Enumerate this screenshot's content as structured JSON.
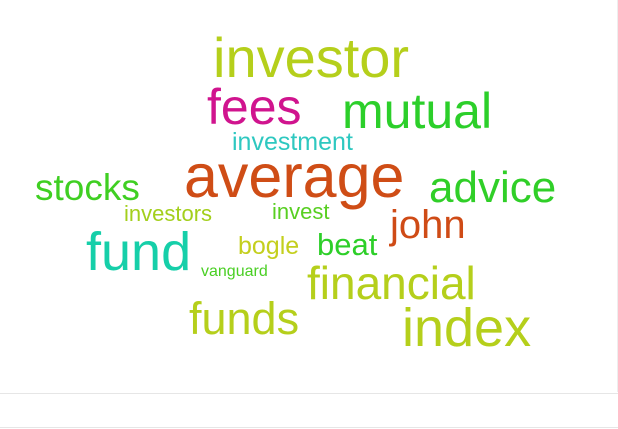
{
  "word_cloud": {
    "words": [
      {
        "text": "investor",
        "color": "#b5cf1b"
      },
      {
        "text": "fees",
        "color": "#d0148e"
      },
      {
        "text": "mutual",
        "color": "#2ccf2a"
      },
      {
        "text": "investment",
        "color": "#2ec8c0"
      },
      {
        "text": "stocks",
        "color": "#3fcf22"
      },
      {
        "text": "average",
        "color": "#cf4d16"
      },
      {
        "text": "advice",
        "color": "#30cf28"
      },
      {
        "text": "investors",
        "color": "#a3cf1c"
      },
      {
        "text": "invest",
        "color": "#58cf22"
      },
      {
        "text": "john",
        "color": "#cf4b16"
      },
      {
        "text": "fund",
        "color": "#16cfa9"
      },
      {
        "text": "bogle",
        "color": "#c4cf1e"
      },
      {
        "text": "beat",
        "color": "#2dcf29"
      },
      {
        "text": "vanguard",
        "color": "#4acf24"
      },
      {
        "text": "financial",
        "color": "#b5cf1b"
      },
      {
        "text": "funds",
        "color": "#b5cf1b"
      },
      {
        "text": "index",
        "color": "#b5cf1b"
      }
    ]
  }
}
